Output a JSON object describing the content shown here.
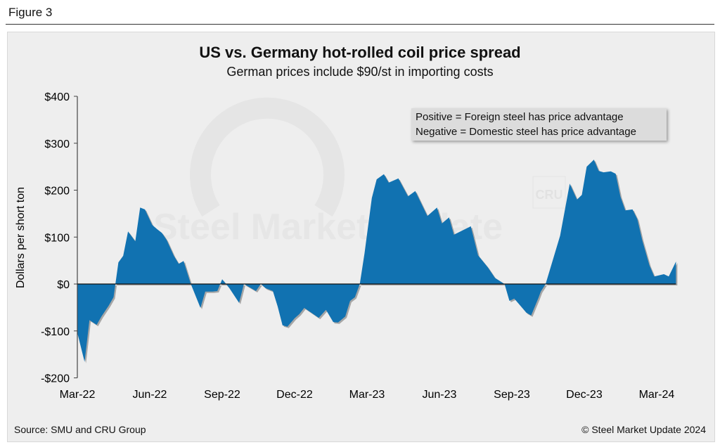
{
  "figure_label": "Figure 3",
  "source": "Source: SMU and CRU Group",
  "copyright": "© Steel Market Update 2024",
  "watermark": {
    "main": "Steel Market Update",
    "secondary": "CRU"
  },
  "colors": {
    "area": "#1172b1",
    "background": "#eeeeee",
    "legend_bg": "#dcdcdc"
  },
  "chart_data": {
    "type": "area",
    "title": "US vs. Germany hot-rolled coil price spread",
    "subtitle": "German prices include $90/st in importing costs",
    "xlabel": "",
    "ylabel": "Dollars per short ton",
    "x_units": "months since Mar-22",
    "xlim": [
      0,
      24.8
    ],
    "ylim": [
      -200,
      400
    ],
    "yticks": [
      400,
      300,
      200,
      100,
      0,
      -100,
      -200
    ],
    "ytick_labels": [
      "$400",
      "$300",
      "$200",
      "$100",
      "$0",
      "-$100",
      "-$200"
    ],
    "xticks": [
      0,
      3,
      6,
      9,
      12,
      15,
      18,
      21,
      24
    ],
    "xtick_labels": [
      "Mar-22",
      "Jun-22",
      "Sep-22",
      "Dec-22",
      "Mar-23",
      "Jun-23",
      "Sep-23",
      "Dec-23",
      "Mar-24"
    ],
    "legend": [
      "Positive = Foreign steel has price advantage",
      "Negative = Domestic steel has price advantage"
    ],
    "legend_position": "top-right",
    "grid": false,
    "x": [
      0,
      0.3,
      0.5,
      0.8,
      1.0,
      1.3,
      1.5,
      1.7,
      1.9,
      2.1,
      2.4,
      2.6,
      2.8,
      3.1,
      3.3,
      3.5,
      3.7,
      4.0,
      4.2,
      4.4,
      4.7,
      5.1,
      5.3,
      5.6,
      5.8,
      6.0,
      6.3,
      6.7,
      6.9,
      7.1,
      7.4,
      7.6,
      7.8,
      8.1,
      8.3,
      8.5,
      8.7,
      9.0,
      9.2,
      9.4,
      10.0,
      10.3,
      10.6,
      10.8,
      11.1,
      11.3,
      11.5,
      11.7,
      11.9,
      12.2,
      12.4,
      12.7,
      12.9,
      13.3,
      13.7,
      14.0,
      14.5,
      14.9,
      15.1,
      15.4,
      15.6,
      16.3,
      16.6,
      17.0,
      17.3,
      17.7,
      17.9,
      18.1,
      18.4,
      18.6,
      18.8,
      19.1,
      19.2,
      19.4,
      20.0,
      20.4,
      20.7,
      20.9,
      21.1,
      21.4,
      21.6,
      21.8,
      22.1,
      22.3,
      22.5,
      22.7,
      23.0,
      23.2,
      23.4,
      23.7,
      23.9,
      24.3,
      24.5,
      24.8
    ],
    "values": [
      -104,
      -166,
      -77,
      -87,
      -69,
      -46,
      -28,
      46,
      60,
      112,
      91,
      163,
      159,
      126,
      117,
      109,
      94,
      60,
      43,
      49,
      0,
      -51,
      -16,
      -16,
      -15,
      10,
      -9,
      -40,
      0,
      -6,
      -15,
      0,
      -9,
      -15,
      -48,
      -88,
      -91,
      -73,
      -64,
      -51,
      -72,
      -55,
      -81,
      -82,
      -69,
      -36,
      -28,
      0,
      66,
      183,
      223,
      234,
      216,
      225,
      187,
      198,
      145,
      163,
      129,
      142,
      105,
      123,
      61,
      36,
      13,
      0,
      -36,
      -31,
      -49,
      -61,
      -67,
      -30,
      -16,
      0,
      103,
      214,
      180,
      190,
      250,
      265,
      241,
      238,
      240,
      235,
      186,
      157,
      159,
      138,
      94,
      40,
      16,
      21,
      16,
      48
    ]
  }
}
